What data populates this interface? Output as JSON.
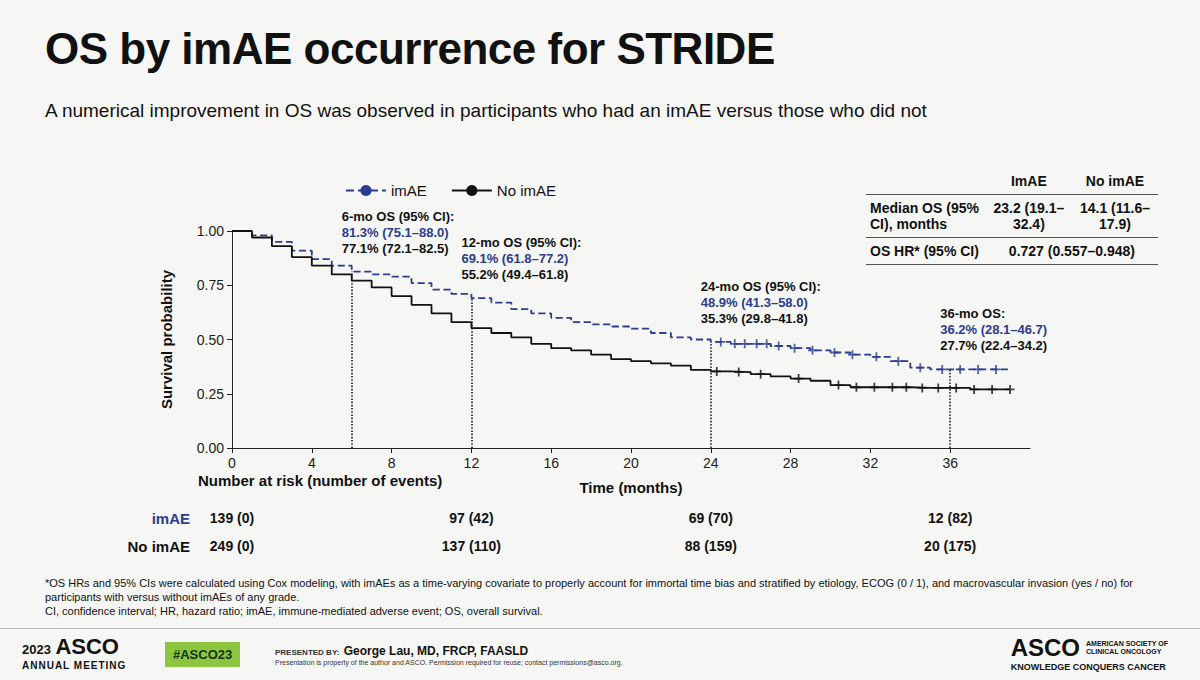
{
  "header": {
    "title": "OS by imAE occurrence for STRIDE",
    "subtitle": "A numerical improvement in OS was observed in participants who had an imAE versus those who did not"
  },
  "chart_data": {
    "type": "line",
    "x_label": "Time (months)",
    "y_label": "Survival probability",
    "x": [
      0,
      1,
      2,
      3,
      4,
      5,
      6,
      7,
      8,
      9,
      10,
      11,
      12,
      13,
      14,
      15,
      16,
      17,
      18,
      19,
      20,
      21,
      22,
      23,
      24,
      25,
      26,
      27,
      28,
      29,
      30,
      31,
      32,
      33,
      34,
      35,
      36,
      37,
      38,
      39
    ],
    "series": [
      {
        "name": "imAE",
        "color": "#2a3d8f",
        "line_style": "dashed",
        "marker": "plus",
        "values": [
          1.0,
          0.98,
          0.95,
          0.91,
          0.87,
          0.84,
          0.813,
          0.8,
          0.79,
          0.76,
          0.73,
          0.71,
          0.691,
          0.67,
          0.64,
          0.62,
          0.6,
          0.58,
          0.57,
          0.56,
          0.55,
          0.53,
          0.51,
          0.5,
          0.489,
          0.48,
          0.48,
          0.47,
          0.46,
          0.45,
          0.44,
          0.43,
          0.42,
          0.4,
          0.37,
          0.362,
          0.362,
          0.362,
          0.362,
          0.362
        ],
        "censored": [
          24.5,
          25.2,
          25.7,
          26.3,
          26.8,
          27.4,
          28.2,
          29.1,
          30.2,
          31.1,
          32.3,
          33.4,
          34.5,
          35.6,
          36.5,
          37.4,
          38.3
        ]
      },
      {
        "name": "No imAE",
        "color": "#111111",
        "line_style": "solid",
        "marker": "plus",
        "values": [
          1.0,
          0.97,
          0.93,
          0.88,
          0.84,
          0.8,
          0.771,
          0.74,
          0.7,
          0.66,
          0.62,
          0.58,
          0.552,
          0.53,
          0.51,
          0.48,
          0.46,
          0.45,
          0.43,
          0.41,
          0.4,
          0.39,
          0.38,
          0.36,
          0.353,
          0.35,
          0.34,
          0.33,
          0.32,
          0.31,
          0.29,
          0.28,
          0.28,
          0.28,
          0.277,
          0.277,
          0.277,
          0.27,
          0.27,
          0.27
        ],
        "censored": [
          24.3,
          25.4,
          26.5,
          28.4,
          30.4,
          31.3,
          32.2,
          33.1,
          33.8,
          34.6,
          35.4,
          36.3,
          37.2,
          38.1,
          39.0
        ]
      }
    ],
    "xlim": [
      0,
      40
    ],
    "xticks": [
      0,
      4,
      8,
      12,
      16,
      20,
      24,
      28,
      32,
      36
    ],
    "ylim": [
      0,
      1
    ],
    "yticks": [
      {
        "value": 0,
        "label": "0.00"
      },
      {
        "value": 0.25,
        "label": "0.25"
      },
      {
        "value": 0.5,
        "label": "0.50"
      },
      {
        "value": 0.75,
        "label": "0.75"
      },
      {
        "value": 1,
        "label": "1.00"
      }
    ],
    "grid": false,
    "legend": "top",
    "annotations": [
      {
        "time": 6,
        "title": "6-mo OS (95% CI):",
        "lines": [
          "81.3% (75.1–88.0)",
          "77.1% (72.1–82.5)"
        ]
      },
      {
        "time": 12,
        "title": "12-mo OS (95% CI):",
        "lines": [
          "69.1% (61.8–77.2)",
          "55.2% (49.4–61.8)"
        ]
      },
      {
        "time": 24,
        "title": "24-mo OS (95% CI):",
        "lines": [
          "48.9% (41.3–58.0)",
          "35.3% (29.8–41.8)"
        ]
      },
      {
        "time": 36,
        "title": "36-mo OS:",
        "lines": [
          "36.2% (28.1–46.7)",
          "27.7% (22.4–34.2)"
        ]
      }
    ],
    "number_at_risk": {
      "title": "Number at risk (number of events)",
      "times": [
        0,
        12,
        24,
        36
      ],
      "rows": [
        {
          "name": "imAE",
          "values": [
            "139 (0)",
            "97 (42)",
            "69 (70)",
            "12 (82)"
          ]
        },
        {
          "name": "No imAE",
          "values": [
            "249 (0)",
            "137 (110)",
            "88 (159)",
            "20 (175)"
          ]
        }
      ]
    }
  },
  "table": {
    "columns": [
      "ImAE",
      "No imAE"
    ],
    "rows": [
      {
        "label": "Median OS (95% CI), months",
        "cells": [
          "23.2 (19.1–32.4)",
          "14.1 (11.6–17.9)"
        ]
      },
      {
        "label": "OS HR* (95% CI)",
        "cells": [
          "0.727 (0.557–0.948)"
        ]
      }
    ]
  },
  "footnotes": [
    "*OS HRs and 95% CIs were calculated using Cox modeling, with imAEs as a time-varying covariate to properly account for immortal time bias and stratified by etiology, ECOG (0 / 1), and macrovascular invasion (yes / no) for participants with versus without imAEs of any grade.",
    "CI, confidence interval; HR, hazard ratio; imAE, immune-mediated adverse event; OS, overall survival."
  ],
  "footer": {
    "meeting_year": "2023",
    "meeting_brand": "ASCO",
    "meeting_name": "ANNUAL MEETING",
    "hashtag": "#ASCO23",
    "presented_by_label": "PRESENTED BY:",
    "presenter": "George Lau, MD, FRCP, FAASLD",
    "copyright": "Presentation is property of the author and ASCO. Permission required for reuse; contact permissions@asco.org.",
    "society_brand": "ASCO",
    "society_name": "AMERICAN SOCIETY OF CLINICAL ONCOLOGY",
    "society_slogan": "KNOWLEDGE CONQUERS CANCER"
  }
}
